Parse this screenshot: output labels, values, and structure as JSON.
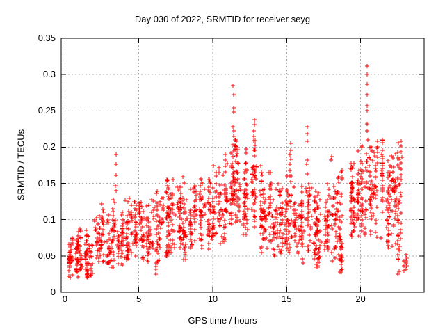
{
  "window": {
    "background": "#ffffff"
  },
  "chart_data": {
    "type": "scatter",
    "title": "Day 030 of 2022, SRMTID for receiver seyg",
    "xlabel": "GPS time / hours",
    "ylabel": "SRMTID / TECUs",
    "xlim": [
      -0.25,
      24.3
    ],
    "ylim": [
      0,
      0.35
    ],
    "xticks": [
      0,
      5,
      10,
      15,
      20
    ],
    "yticks": [
      0,
      0.05,
      0.1,
      0.15,
      0.2,
      0.25,
      0.3,
      0.35
    ],
    "x_data_range": [
      0,
      23.2
    ],
    "grid": {
      "show": true,
      "color": "#a8a8a8",
      "dash": [
        2,
        3
      ]
    },
    "marker": {
      "shape": "plus",
      "color": "#ff0000",
      "size": 7,
      "stroke_width": 1
    },
    "axis_color": "#000000",
    "seed": 20220130,
    "bin_fields": [
      "x0",
      "x1",
      "ymin",
      "ymax",
      "count"
    ],
    "envelope_bins": [
      [
        0.0,
        0.5,
        0.015,
        0.075,
        40
      ],
      [
        0.5,
        1.0,
        0.02,
        0.085,
        40
      ],
      [
        1.0,
        1.5,
        0.012,
        0.1,
        42
      ],
      [
        1.5,
        2.0,
        0.013,
        0.08,
        40
      ],
      [
        2.0,
        2.5,
        0.03,
        0.115,
        38
      ],
      [
        2.5,
        3.0,
        0.04,
        0.13,
        36
      ],
      [
        3.0,
        3.5,
        0.035,
        0.145,
        36
      ],
      [
        3.5,
        4.0,
        0.035,
        0.12,
        36
      ],
      [
        4.0,
        4.5,
        0.04,
        0.13,
        36
      ],
      [
        4.5,
        5.0,
        0.035,
        0.125,
        36
      ],
      [
        5.0,
        5.5,
        0.045,
        0.125,
        36
      ],
      [
        5.5,
        6.0,
        0.04,
        0.13,
        36
      ],
      [
        6.0,
        6.5,
        0.025,
        0.14,
        38
      ],
      [
        6.5,
        7.0,
        0.05,
        0.155,
        38
      ],
      [
        7.0,
        7.5,
        0.055,
        0.155,
        38
      ],
      [
        7.5,
        8.0,
        0.05,
        0.145,
        38
      ],
      [
        8.0,
        8.5,
        0.045,
        0.16,
        40
      ],
      [
        8.5,
        9.0,
        0.055,
        0.15,
        38
      ],
      [
        9.0,
        9.5,
        0.06,
        0.16,
        38
      ],
      [
        9.5,
        10.0,
        0.045,
        0.155,
        38
      ],
      [
        10.0,
        10.5,
        0.065,
        0.175,
        40
      ],
      [
        10.5,
        11.0,
        0.07,
        0.19,
        40
      ],
      [
        11.0,
        11.5,
        0.08,
        0.2,
        42
      ],
      [
        11.5,
        12.0,
        0.085,
        0.21,
        44
      ],
      [
        12.0,
        12.5,
        0.08,
        0.2,
        44
      ],
      [
        12.5,
        13.0,
        0.09,
        0.21,
        42
      ],
      [
        13.0,
        13.5,
        0.055,
        0.175,
        40
      ],
      [
        13.5,
        14.0,
        0.06,
        0.165,
        38
      ],
      [
        14.0,
        14.5,
        0.05,
        0.15,
        38
      ],
      [
        14.5,
        15.0,
        0.045,
        0.145,
        38
      ],
      [
        15.0,
        15.5,
        0.05,
        0.16,
        38
      ],
      [
        15.5,
        16.0,
        0.05,
        0.145,
        38
      ],
      [
        16.0,
        16.5,
        0.04,
        0.17,
        40
      ],
      [
        16.5,
        17.0,
        0.04,
        0.15,
        38
      ],
      [
        17.0,
        17.5,
        0.035,
        0.145,
        38
      ],
      [
        17.5,
        18.0,
        0.05,
        0.15,
        38
      ],
      [
        18.0,
        18.5,
        0.035,
        0.16,
        38
      ],
      [
        18.5,
        19.0,
        0.028,
        0.17,
        40
      ],
      [
        19.0,
        19.5,
        0.06,
        0.19,
        42
      ],
      [
        19.5,
        20.0,
        0.07,
        0.2,
        44
      ],
      [
        20.0,
        20.5,
        0.08,
        0.21,
        44
      ],
      [
        20.5,
        21.0,
        0.08,
        0.205,
        44
      ],
      [
        21.0,
        21.5,
        0.07,
        0.21,
        42
      ],
      [
        21.5,
        22.0,
        0.06,
        0.19,
        40
      ],
      [
        22.0,
        22.5,
        0.05,
        0.2,
        40
      ],
      [
        22.5,
        23.2,
        0.025,
        0.21,
        40
      ]
    ],
    "spikes": [
      {
        "x": 3.45,
        "y": [
          0.19,
          0.176,
          0.161,
          0.147,
          0.14
        ]
      },
      {
        "x": 6.15,
        "y": [
          0.04,
          0.032,
          0.025
        ]
      },
      {
        "x": 10.45,
        "y": [
          0.172,
          0.165
        ]
      },
      {
        "x": 10.85,
        "y": [
          0.19,
          0.182,
          0.174,
          0.166
        ]
      },
      {
        "x": 11.4,
        "y": [
          0.285,
          0.272,
          0.254,
          0.248,
          0.228,
          0.222,
          0.215,
          0.203,
          0.195
        ]
      },
      {
        "x": 12.8,
        "y": [
          0.238,
          0.231,
          0.222,
          0.215,
          0.209,
          0.196,
          0.188,
          0.175,
          0.166,
          0.158
        ]
      },
      {
        "x": 13.3,
        "y": [
          0.062,
          0.055
        ]
      },
      {
        "x": 15.25,
        "y": [
          0.205,
          0.196,
          0.19,
          0.183,
          0.176,
          0.168,
          0.16,
          0.152
        ]
      },
      {
        "x": 16.4,
        "y": [
          0.228,
          0.219,
          0.208,
          0.182,
          0.176,
          0.163
        ]
      },
      {
        "x": 17.2,
        "y": [
          0.056,
          0.048,
          0.041
        ]
      },
      {
        "x": 18.0,
        "y": [
          0.187,
          0.182
        ]
      },
      {
        "x": 18.7,
        "y": [
          0.052,
          0.045,
          0.038,
          0.031
        ]
      },
      {
        "x": 20.45,
        "y": [
          0.312,
          0.3,
          0.287,
          0.272,
          0.257,
          0.25,
          0.232,
          0.222,
          0.21
        ]
      },
      {
        "x": 21.15,
        "y": [
          0.208,
          0.2,
          0.193,
          0.186,
          0.178
        ]
      },
      {
        "x": 22.75,
        "y": [
          0.208,
          0.201,
          0.194,
          0.186,
          0.178,
          0.17,
          0.162,
          0.155
        ]
      },
      {
        "x": 22.95,
        "y": [
          0.043,
          0.036,
          0.03
        ]
      },
      {
        "x": 23.1,
        "y": [
          0.052,
          0.047,
          0.043,
          0.04,
          0.036,
          0.032
        ]
      }
    ]
  }
}
